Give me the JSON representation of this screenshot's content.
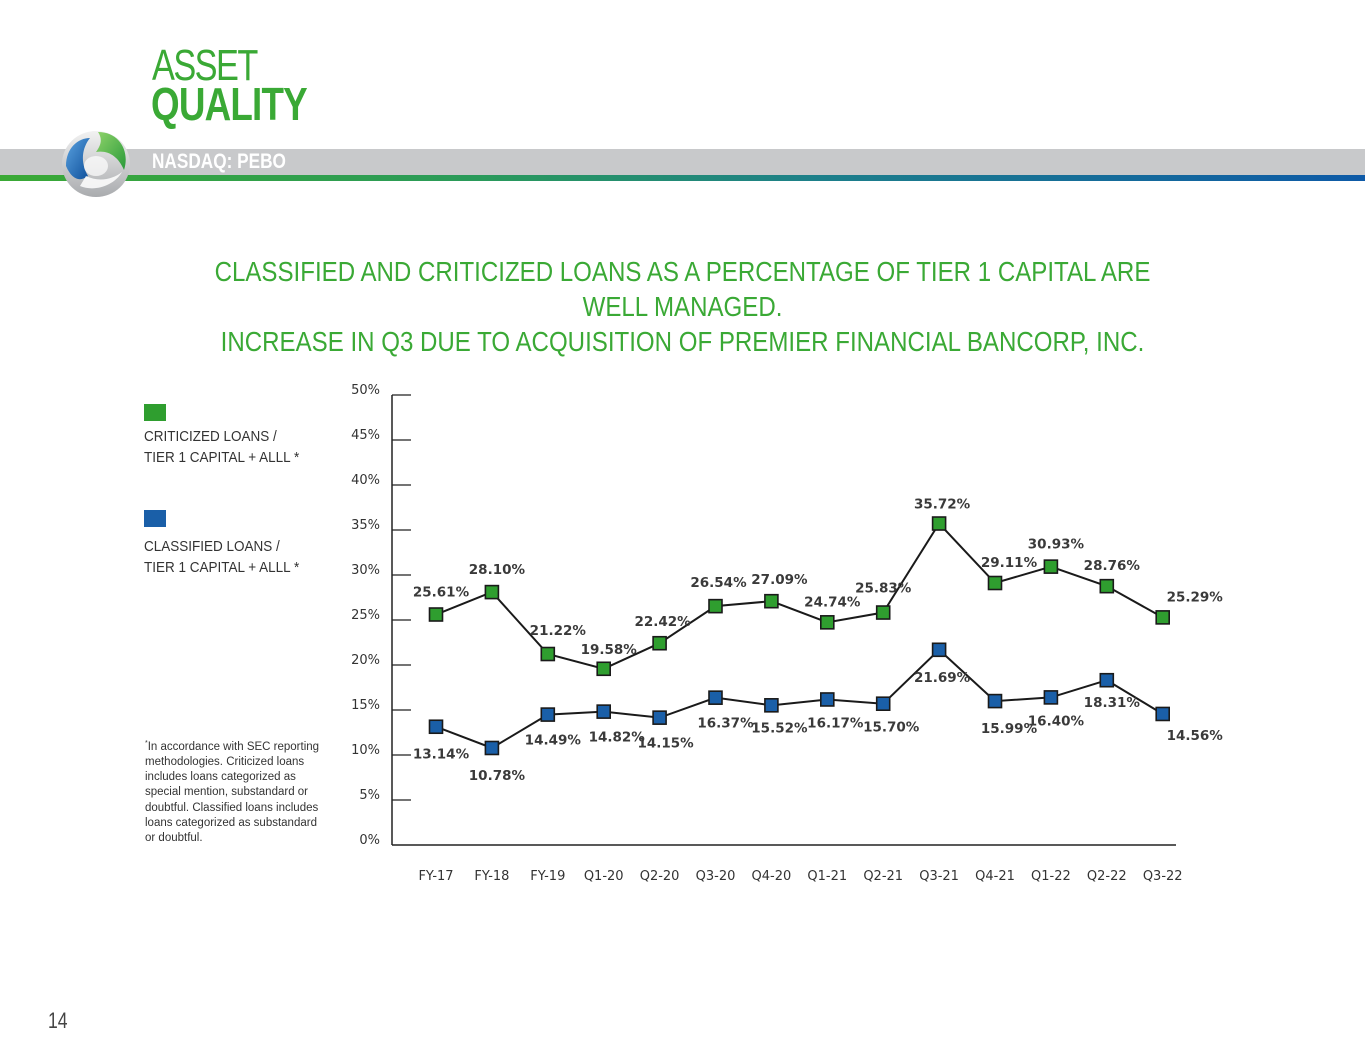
{
  "header": {
    "title_line1": "ASSET",
    "title_line2": "QUALITY",
    "ticker": "NASDAQ: PEBO"
  },
  "headline": {
    "line1": "CLASSIFIED AND CRITICIZED LOANS AS A PERCENTAGE OF TIER 1 CAPITAL ARE WELL MANAGED.",
    "line2": "INCREASE IN Q3 DUE TO ACQUISITION OF PREMIER FINANCIAL BANCORP, INC."
  },
  "legend": {
    "criticized": {
      "line1": "CRITICIZED LOANS /",
      "line2": "TIER 1 CAPITAL + ALLL *",
      "color": "#2f9e2f"
    },
    "classified": {
      "line1": "CLASSIFIED LOANS /",
      "line2": "TIER 1 CAPITAL + ALLL *",
      "color": "#1a5fa8"
    }
  },
  "footnote": {
    "marker": "*",
    "text": "In accordance with SEC reporting methodologies. Criticized loans includes loans categorized as special mention, substandard or doubtful. Classified loans includes loans categorized as substandard or doubtful."
  },
  "page_number": "14",
  "chart_data": {
    "type": "line",
    "title": "",
    "xlabel": "",
    "ylabel": "",
    "ylim": [
      0,
      50
    ],
    "yticks": [
      "0%",
      "5%",
      "10%",
      "15%",
      "20%",
      "25%",
      "30%",
      "35%",
      "40%",
      "45%",
      "50%"
    ],
    "categories": [
      "FY-17",
      "FY-18",
      "FY-19",
      "Q1-20",
      "Q2-20",
      "Q3-20",
      "Q4-20",
      "Q1-21",
      "Q2-21",
      "Q3-21",
      "Q4-21",
      "Q1-22",
      "Q2-22",
      "Q3-22"
    ],
    "series": [
      {
        "name": "CRITICIZED LOANS / TIER 1 CAPITAL + ALLL *",
        "color": "#2f9e2f",
        "values": [
          25.61,
          28.1,
          21.22,
          19.58,
          22.42,
          26.54,
          27.09,
          24.74,
          25.83,
          35.72,
          29.11,
          30.93,
          28.76,
          25.29
        ],
        "labels": [
          "25.61%",
          "28.10%",
          "21.22%",
          "19.58%",
          "22.42%",
          "26.54%",
          "27.09%",
          "24.74%",
          "25.83%",
          "35.72%",
          "29.11%",
          "30.93%",
          "28.76%",
          "25.29%"
        ]
      },
      {
        "name": "CLASSIFIED LOANS / TIER 1 CAPITAL + ALLL *",
        "color": "#1a5fa8",
        "values": [
          13.14,
          10.78,
          14.49,
          14.82,
          14.15,
          16.37,
          15.52,
          16.17,
          15.7,
          21.69,
          15.99,
          16.4,
          18.31,
          14.56
        ],
        "labels": [
          "13.14%",
          "10.78%",
          "14.49%",
          "14.82%",
          "14.15%",
          "16.37%",
          "15.52%",
          "16.17%",
          "15.70%",
          "21.69%",
          "15.99%",
          "16.40%",
          "18.31%",
          "14.56%"
        ]
      }
    ]
  }
}
